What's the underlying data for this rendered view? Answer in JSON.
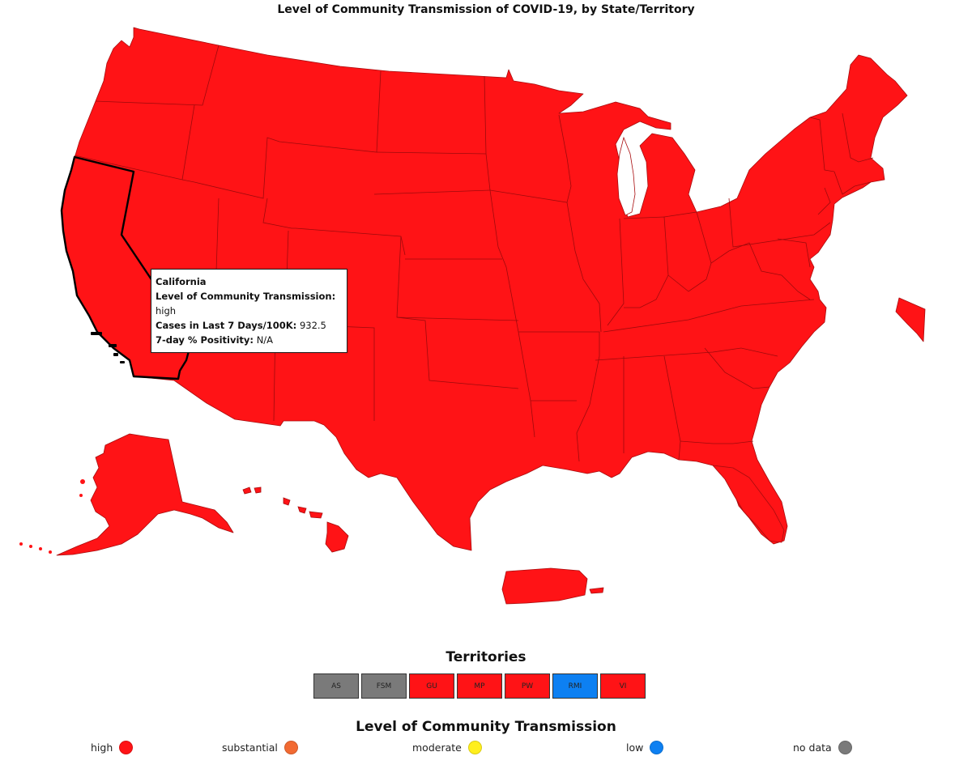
{
  "title": "Level of Community Transmission of COVID-19, by State/Territory",
  "colors": {
    "high": "#ff1316",
    "substantial": "#f26a32",
    "moderate": "#ffef1d",
    "low": "#0d80f2",
    "no_data": "#7a7a7a"
  },
  "map": {
    "all_states_level": "high",
    "selected_state": "California"
  },
  "tooltip": {
    "name": "California",
    "level_label": "Level of Community Transmission:",
    "level_value": "high",
    "cases_label": "Cases in Last 7 Days/100K:",
    "cases_value": "932.5",
    "positivity_label": "7-day % Positivity:",
    "positivity_value": "N/A"
  },
  "territories": {
    "heading": "Territories",
    "items": [
      {
        "code": "AS",
        "level": "no data"
      },
      {
        "code": "FSM",
        "level": "no data"
      },
      {
        "code": "GU",
        "level": "high"
      },
      {
        "code": "MP",
        "level": "high"
      },
      {
        "code": "PW",
        "level": "high"
      },
      {
        "code": "RMI",
        "level": "low"
      },
      {
        "code": "VI",
        "level": "high"
      }
    ]
  },
  "legend": {
    "heading": "Level of Community Transmission",
    "items": [
      {
        "label": "high",
        "color": "#ff1316"
      },
      {
        "label": "substantial",
        "color": "#f26a32"
      },
      {
        "label": "moderate",
        "color": "#ffef1d"
      },
      {
        "label": "low",
        "color": "#0d80f2"
      },
      {
        "label": "no data",
        "color": "#7a7a7a"
      }
    ]
  }
}
